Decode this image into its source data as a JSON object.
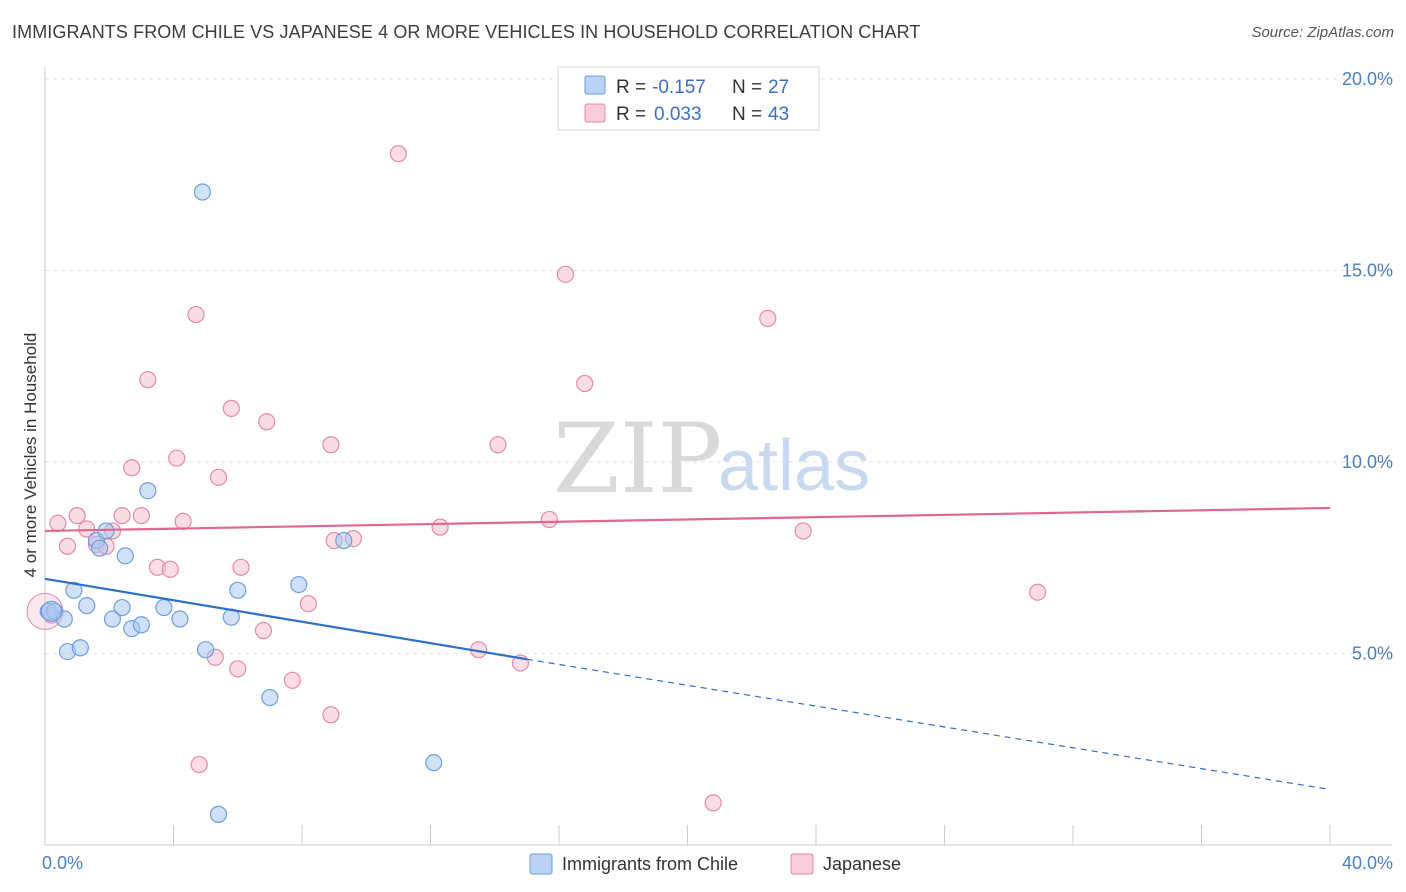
{
  "title": "IMMIGRANTS FROM CHILE VS JAPANESE 4 OR MORE VEHICLES IN HOUSEHOLD CORRELATION CHART",
  "source": "Source: ZipAtlas.com",
  "watermark": {
    "zip": "ZIP",
    "atlas": "atlas"
  },
  "colors": {
    "chile_fill": "#a9c7f0",
    "chile_stroke": "#6e9fdc",
    "chile_line": "#2f6fcc",
    "japanese_fill": "#f6bfd0",
    "japanese_stroke": "#e58aa8",
    "japanese_line": "#e0678f",
    "tick_label": "#4a7fc1"
  },
  "legend": {
    "rows": [
      {
        "r_label": "R =",
        "r_value": "-0.157",
        "n_label": "N =",
        "n_value": "27"
      },
      {
        "r_label": "R =",
        "r_value": "0.033",
        "n_label": "N =",
        "n_value": "43"
      }
    ]
  },
  "bottom_legend": [
    "Immigrants from Chile",
    "Japanese"
  ],
  "chart_data": {
    "type": "scatter",
    "title": "IMMIGRANTS FROM CHILE VS JAPANESE 4 OR MORE VEHICLES IN HOUSEHOLD CORRELATION CHART",
    "xlabel": "",
    "ylabel": "4 or more Vehicles in Household",
    "xlim": [
      0,
      40
    ],
    "ylim": [
      0,
      20.5
    ],
    "x_tick_labels": [
      "0.0%",
      "40.0%"
    ],
    "y_ticks": [
      5,
      10,
      15,
      20
    ],
    "y_tick_labels": [
      "5.0%",
      "10.0%",
      "15.0%",
      "20.0%"
    ],
    "grid": true,
    "legend_position": "top-center",
    "series": [
      {
        "name": "Immigrants from Chile",
        "r": -0.157,
        "n": 27,
        "trend": {
          "x0": 0,
          "y0": 6.95,
          "x1": 15,
          "y1": 4.85,
          "dashed_to_x": 40,
          "dashed_to_y": 1.45
        },
        "points": [
          [
            0.1,
            6.1
          ],
          [
            0.3,
            6.1
          ],
          [
            0.6,
            5.9
          ],
          [
            0.7,
            5.05
          ],
          [
            0.9,
            6.65
          ],
          [
            1.1,
            5.15
          ],
          [
            1.3,
            6.25
          ],
          [
            1.6,
            7.95
          ],
          [
            1.7,
            7.75
          ],
          [
            1.9,
            8.2
          ],
          [
            2.1,
            5.9
          ],
          [
            2.4,
            6.2
          ],
          [
            2.5,
            7.55
          ],
          [
            2.7,
            5.65
          ],
          [
            3.0,
            5.75
          ],
          [
            3.2,
            9.25
          ],
          [
            3.7,
            6.2
          ],
          [
            4.2,
            5.9
          ],
          [
            4.9,
            17.05
          ],
          [
            5.0,
            5.1
          ],
          [
            5.4,
            0.8
          ],
          [
            5.8,
            5.95
          ],
          [
            6.0,
            6.65
          ],
          [
            7.0,
            3.85
          ],
          [
            7.9,
            6.8
          ],
          [
            9.3,
            7.95
          ],
          [
            12.1,
            2.15
          ]
        ]
      },
      {
        "name": "Japanese",
        "r": 0.033,
        "n": 43,
        "trend": {
          "x0": 0,
          "y0": 8.2,
          "x1": 40,
          "y1": 8.8
        },
        "points": [
          [
            0.2,
            6.0
          ],
          [
            0.4,
            8.4
          ],
          [
            0.7,
            7.8
          ],
          [
            1.0,
            8.6
          ],
          [
            1.3,
            8.25
          ],
          [
            1.6,
            7.85
          ],
          [
            1.9,
            7.8
          ],
          [
            2.1,
            8.2
          ],
          [
            2.4,
            8.6
          ],
          [
            2.7,
            9.85
          ],
          [
            3.0,
            8.6
          ],
          [
            3.2,
            12.15
          ],
          [
            3.5,
            7.25
          ],
          [
            3.9,
            7.2
          ],
          [
            4.1,
            10.1
          ],
          [
            4.3,
            8.45
          ],
          [
            4.7,
            13.85
          ],
          [
            4.8,
            2.1
          ],
          [
            5.3,
            4.9
          ],
          [
            5.4,
            9.6
          ],
          [
            5.8,
            11.4
          ],
          [
            6.0,
            4.6
          ],
          [
            6.1,
            7.25
          ],
          [
            6.8,
            5.6
          ],
          [
            6.9,
            11.05
          ],
          [
            7.7,
            4.3
          ],
          [
            8.2,
            6.3
          ],
          [
            8.9,
            3.4
          ],
          [
            8.9,
            10.45
          ],
          [
            9.0,
            7.95
          ],
          [
            9.6,
            8.0
          ],
          [
            11.0,
            18.05
          ],
          [
            12.3,
            8.3
          ],
          [
            13.5,
            5.1
          ],
          [
            14.1,
            10.45
          ],
          [
            14.8,
            4.75
          ],
          [
            15.7,
            8.5
          ],
          [
            16.2,
            14.9
          ],
          [
            16.8,
            12.05
          ],
          [
            20.8,
            1.1
          ],
          [
            22.5,
            13.75
          ],
          [
            23.6,
            8.2
          ],
          [
            30.9,
            6.6
          ]
        ]
      }
    ]
  }
}
